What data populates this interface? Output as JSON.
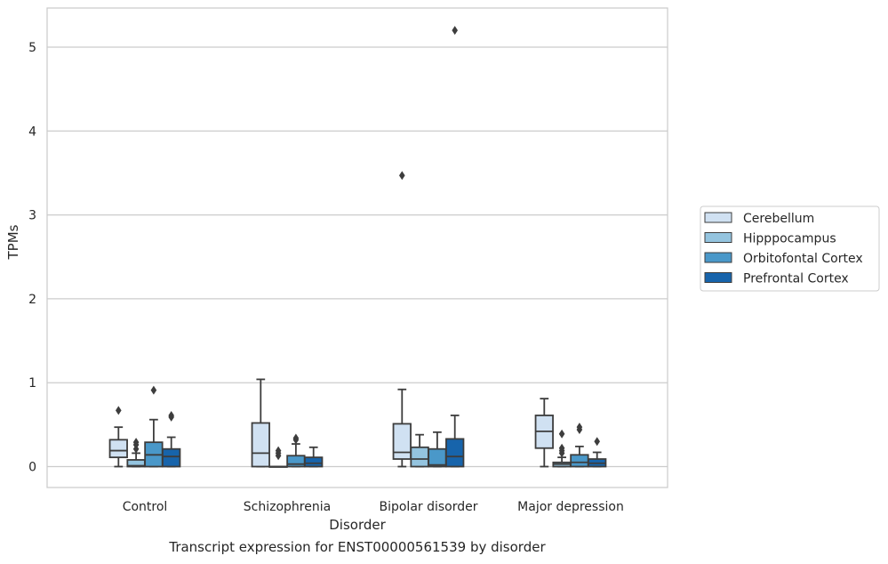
{
  "caption": "Transcript expression for ENST00000561539 by disorder",
  "chart_data": {
    "type": "boxplot",
    "xlabel": "Disorder",
    "ylabel": "TPMs",
    "ylim": [
      -0.25,
      5.5
    ],
    "yticks": [
      0,
      1,
      2,
      3,
      4,
      5
    ],
    "grid": "horizontal",
    "legend_position": "right",
    "categories": [
      "Control",
      "Schizophrenia",
      "Bipolar disorder",
      "Major depression"
    ],
    "series": [
      {
        "name": "Cerebellum",
        "color": "#d0e1f2",
        "boxes": [
          {
            "whislo": 0.0,
            "q1": 0.11,
            "med": 0.19,
            "q3": 0.32,
            "whishi": 0.47,
            "fliers": [
              0.67
            ]
          },
          {
            "whislo": 0.0,
            "q1": 0.0,
            "med": 0.16,
            "q3": 0.52,
            "whishi": 1.04,
            "fliers": []
          },
          {
            "whislo": 0.0,
            "q1": 0.09,
            "med": 0.17,
            "q3": 0.51,
            "whishi": 0.92,
            "fliers": [
              3.47
            ]
          },
          {
            "whislo": 0.0,
            "q1": 0.22,
            "med": 0.42,
            "q3": 0.61,
            "whishi": 0.81,
            "fliers": []
          }
        ]
      },
      {
        "name": "Hipppocampus",
        "color": "#94c4df",
        "boxes": [
          {
            "whislo": 0.0,
            "q1": 0.0,
            "med": 0.01,
            "q3": 0.08,
            "whishi": 0.16,
            "fliers": [
              0.21,
              0.26,
              0.29
            ]
          },
          {
            "whislo": 0.0,
            "q1": 0.0,
            "med": 0.0,
            "q3": 0.0,
            "whishi": 0.0,
            "fliers": [
              0.13,
              0.16,
              0.19
            ]
          },
          {
            "whislo": 0.0,
            "q1": 0.0,
            "med": 0.09,
            "q3": 0.23,
            "whishi": 0.38,
            "fliers": []
          },
          {
            "whislo": 0.0,
            "q1": 0.0,
            "med": 0.03,
            "q3": 0.05,
            "whishi": 0.11,
            "fliers": [
              0.16,
              0.19,
              0.22,
              0.39
            ]
          }
        ]
      },
      {
        "name": "Orbitofontal Cortex",
        "color": "#4a98c9",
        "boxes": [
          {
            "whislo": 0.0,
            "q1": 0.0,
            "med": 0.14,
            "q3": 0.29,
            "whishi": 0.56,
            "fliers": [
              0.91
            ]
          },
          {
            "whislo": 0.0,
            "q1": 0.0,
            "med": 0.03,
            "q3": 0.13,
            "whishi": 0.27,
            "fliers": [
              0.32,
              0.34
            ]
          },
          {
            "whislo": 0.0,
            "q1": 0.0,
            "med": 0.02,
            "q3": 0.21,
            "whishi": 0.41,
            "fliers": []
          },
          {
            "whislo": 0.0,
            "q1": 0.0,
            "med": 0.05,
            "q3": 0.14,
            "whishi": 0.24,
            "fliers": [
              0.44,
              0.47
            ]
          }
        ]
      },
      {
        "name": "Prefrontal Cortex",
        "color": "#1764ab",
        "boxes": [
          {
            "whislo": 0.0,
            "q1": 0.0,
            "med": 0.12,
            "q3": 0.21,
            "whishi": 0.35,
            "fliers": [
              0.59,
              0.61
            ]
          },
          {
            "whislo": 0.0,
            "q1": 0.0,
            "med": 0.04,
            "q3": 0.11,
            "whishi": 0.23,
            "fliers": []
          },
          {
            "whislo": 0.0,
            "q1": 0.0,
            "med": 0.12,
            "q3": 0.33,
            "whishi": 0.61,
            "fliers": [
              5.2
            ]
          },
          {
            "whislo": 0.0,
            "q1": 0.0,
            "med": 0.04,
            "q3": 0.09,
            "whishi": 0.17,
            "fliers": [
              0.3
            ]
          }
        ]
      }
    ]
  }
}
